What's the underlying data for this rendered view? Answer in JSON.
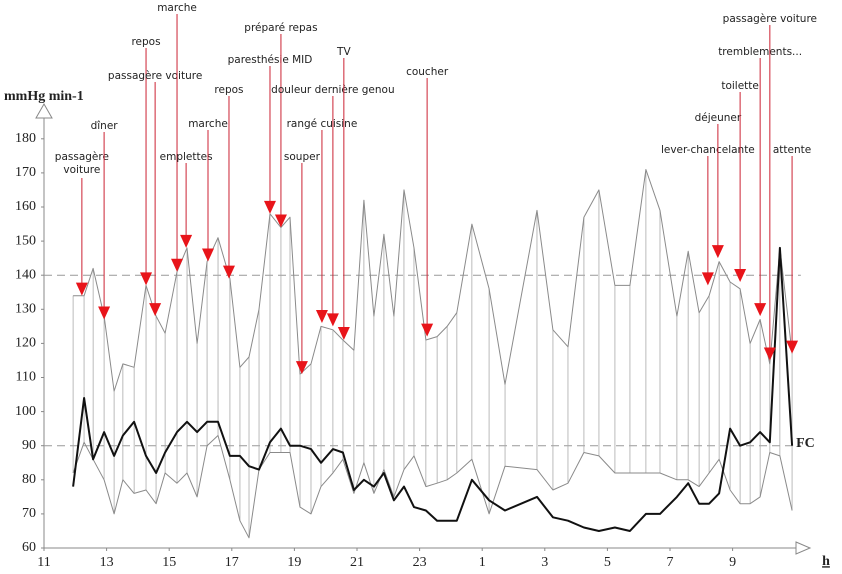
{
  "chart_data": {
    "type": "line",
    "y_label": "mmHg min-1",
    "x_label": "h",
    "x": [
      11.93,
      12.28,
      12.57,
      12.92,
      13.24,
      13.52,
      13.88,
      14.26,
      14.58,
      14.87,
      15.25,
      15.57,
      15.89,
      16.21,
      16.56,
      16.94,
      17.26,
      17.55,
      17.87,
      18.22,
      18.57,
      18.86,
      19.18,
      19.53,
      19.85,
      20.23,
      20.55,
      20.9,
      21.22,
      21.54,
      21.86,
      22.18,
      22.5,
      22.82,
      23.2,
      23.56,
      23.88,
      24.19,
      24.67,
      25.22,
      25.73,
      26.75,
      27.26,
      27.74,
      28.25,
      28.73,
      29.24,
      29.72,
      30.23,
      30.68,
      31.22,
      31.58,
      31.93,
      32.25,
      32.57,
      32.92,
      33.24,
      33.56,
      33.88,
      34.19,
      34.51,
      34.9
    ],
    "series": [
      {
        "color": "#8a8a8a",
        "values": [
          134,
          134,
          142,
          128,
          106,
          114,
          113,
          137,
          128,
          123,
          141,
          148,
          120,
          144,
          151,
          139,
          113,
          116,
          130,
          158,
          154,
          157,
          111,
          114,
          125,
          124,
          121,
          118,
          162,
          128,
          152,
          128,
          165,
          148,
          121,
          122,
          125,
          129,
          155,
          136,
          108,
          159,
          124,
          119,
          157,
          165,
          137,
          137,
          171,
          159,
          128,
          147,
          129,
          134,
          144,
          138,
          136,
          120,
          127,
          114,
          148,
          117
        ]
      },
      {
        "color": "#8a8a8a",
        "values": [
          82,
          91,
          86,
          80,
          70,
          80,
          76,
          77,
          73,
          82,
          79,
          82,
          75,
          90,
          93,
          80,
          68,
          63,
          83,
          88,
          88,
          88,
          72,
          70,
          78,
          82,
          86,
          76,
          85,
          76,
          83,
          75,
          83,
          87,
          78,
          79,
          80,
          82,
          86,
          70,
          84,
          83,
          77,
          79,
          88,
          87,
          82,
          82,
          82,
          82,
          80,
          80,
          78,
          82,
          86,
          77,
          73,
          73,
          75,
          88,
          87,
          71
        ]
      },
      {
        "name": "FC",
        "color": "#111111",
        "values": [
          78,
          104,
          86,
          94,
          87,
          93,
          97,
          87,
          82,
          88,
          94,
          97,
          94,
          97,
          97,
          87,
          87,
          84,
          83,
          91,
          95,
          90,
          90,
          89,
          85,
          89,
          88,
          77,
          80,
          78,
          82,
          74,
          78,
          72,
          71,
          68,
          68,
          68,
          80,
          74,
          71,
          75,
          69,
          68,
          66,
          65,
          66,
          65,
          70,
          70,
          75,
          79,
          73,
          73,
          76,
          95,
          90,
          91,
          94,
          91,
          148,
          90
        ]
      }
    ],
    "ref_lines": [
      140,
      90
    ],
    "annotation_color": "#e8141a",
    "annotations": [
      {
        "label": [
          "passagère",
          "voiture"
        ],
        "x": 12.21,
        "y": 134
      },
      {
        "label": "dîner",
        "x": 12.92,
        "y": 127
      },
      {
        "label": "repos",
        "x": 14.26,
        "y": 137
      },
      {
        "label": "passagère voiture",
        "x": 14.55,
        "y": 128
      },
      {
        "label": "marche",
        "x": 15.25,
        "y": 141
      },
      {
        "label": "emplettes",
        "x": 15.54,
        "y": 148
      },
      {
        "label": "marche",
        "x": 16.24,
        "y": 144
      },
      {
        "label": "repos",
        "x": 16.91,
        "y": 139
      },
      {
        "label": "paresthésie MID",
        "x": 18.22,
        "y": 158
      },
      {
        "label": "préparé repas",
        "x": 18.57,
        "y": 154
      },
      {
        "label": "souper",
        "x": 19.24,
        "y": 111
      },
      {
        "label": "rangé cuisine",
        "x": 19.88,
        "y": 126
      },
      {
        "label": "douleur dernière genou",
        "x": 20.23,
        "y": 125
      },
      {
        "label": "TV",
        "x": 20.58,
        "y": 121
      },
      {
        "label": "coucher",
        "x": 23.24,
        "y": 122
      },
      {
        "label": "lever-chancelante",
        "x": 32.21,
        "y": 137
      },
      {
        "label": "déjeuner",
        "x": 32.53,
        "y": 145
      },
      {
        "label": "toilette",
        "x": 33.24,
        "y": 138
      },
      {
        "label": "tremblements...",
        "x": 33.88,
        "y": 128
      },
      {
        "label": "passagère voiture",
        "x": 34.19,
        "y": 115
      },
      {
        "label": "attente",
        "x": 34.9,
        "y": 117
      }
    ],
    "xlim": [
      11,
      35.5
    ],
    "ylim": [
      60,
      190
    ],
    "xticks": [
      11,
      13,
      15,
      17,
      19,
      21,
      23,
      {
        "value": 25,
        "label": "1"
      },
      {
        "value": 27,
        "label": "3"
      },
      {
        "value": 29,
        "label": "5"
      },
      {
        "value": 31,
        "label": "7"
      },
      {
        "value": 33,
        "label": "9"
      }
    ],
    "yticks": [
      60,
      70,
      80,
      90,
      100,
      110,
      120,
      130,
      140,
      150,
      160,
      170,
      180
    ]
  }
}
